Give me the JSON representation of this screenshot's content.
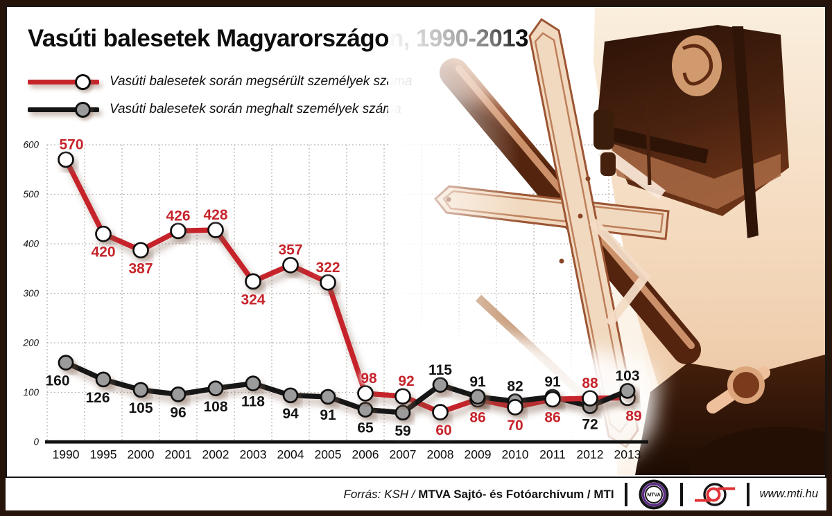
{
  "title": "Vasúti balesetek Magyarországon, 1990-2013",
  "colors": {
    "injured_line": "#c6242b",
    "killed_line": "#141414",
    "killed_marker_fill": "#9b9b9b",
    "injured_marker_fill": "#ffffff",
    "grid": "#b0a8a0",
    "sepia_dark": "#3a1a0c",
    "sepia_light": "#f1d9c0"
  },
  "chart_data": {
    "type": "line",
    "title": "Vasúti balesetek Magyarországon, 1990-2013",
    "categories": [
      "1990",
      "1995",
      "2000",
      "2001",
      "2002",
      "2003",
      "2004",
      "2005",
      "2006",
      "2007",
      "2008",
      "2009",
      "2010",
      "2011",
      "2012",
      "2013"
    ],
    "series": [
      {
        "name": "Vasúti balesetek során megsérült személyek száma",
        "color": "#c6242b",
        "marker_fill": "#ffffff",
        "values": [
          570,
          420,
          387,
          426,
          428,
          324,
          357,
          322,
          98,
          92,
          60,
          86,
          70,
          86,
          88,
          89
        ],
        "label_sides": [
          "above",
          "below",
          "below",
          "above",
          "above",
          "below",
          "above",
          "above",
          "above",
          "above",
          "below",
          "below",
          "below",
          "below",
          "above",
          "below"
        ],
        "label_dx": [
          8,
          0,
          0,
          0,
          0,
          0,
          0,
          0,
          5,
          5,
          5,
          0,
          0,
          0,
          0,
          9
        ]
      },
      {
        "name": "Vasúti balesetek során meghalt személyek száma",
        "color": "#141414",
        "marker_fill": "#9b9b9b",
        "values": [
          160,
          126,
          105,
          96,
          108,
          118,
          94,
          91,
          65,
          59,
          115,
          91,
          82,
          91,
          72,
          103
        ],
        "label_sides": [
          "below",
          "below",
          "below",
          "below",
          "below",
          "below",
          "below",
          "below",
          "below",
          "below",
          "above",
          "above",
          "above",
          "above",
          "below",
          "above"
        ],
        "label_dx": [
          -12,
          -8,
          0,
          0,
          0,
          0,
          0,
          0,
          0,
          0,
          0,
          0,
          0,
          0,
          0,
          0
        ]
      }
    ],
    "ylim": [
      0,
      600
    ],
    "yticks": [
      0,
      100,
      200,
      300,
      400,
      500,
      600
    ],
    "grid": "dotted",
    "legend_position": "top-left"
  },
  "footer": {
    "source_italic": "Forrás: KSH /",
    "source_bold": "MTVA Sajtó- és Fotóarchívum / MTI",
    "mtva_logo_text": "MTVA",
    "website": "www.mti.hu",
    "logos": [
      "mtva-circle-logo",
      "mti-circle-logo"
    ]
  }
}
